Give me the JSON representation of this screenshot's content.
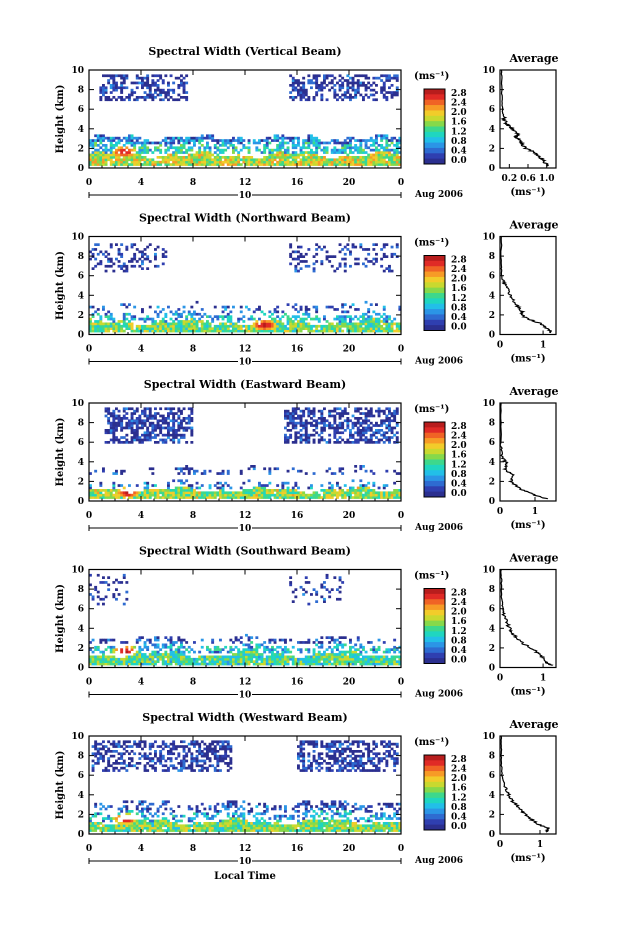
{
  "figure": {
    "xlabel": "Local Time",
    "ylabel": "Height (km)",
    "date_label": "10",
    "month_label": "Aug 2006",
    "unit_label": "(ms⁻¹)",
    "average_title": "Average",
    "colorbar_ticks": [
      "2.8",
      "2.4",
      "2.0",
      "1.6",
      "1.2",
      "0.8",
      "0.4",
      "0.0"
    ],
    "colormap": [
      "#2b2f8f",
      "#2f3fb0",
      "#2e6bd1",
      "#2b95e6",
      "#22bfe8",
      "#1fd6c0",
      "#3dd88c",
      "#86d94a",
      "#c9d92f",
      "#f2cc2a",
      "#f79b26",
      "#f06325",
      "#e02a26",
      "#b81d1d"
    ],
    "x_ticks": [
      "0",
      "4",
      "8",
      "12",
      "16",
      "20",
      "0"
    ],
    "y_ticks": [
      "0",
      "2",
      "4",
      "6",
      "8",
      "10"
    ]
  },
  "chart_data": [
    {
      "type": "heatmap",
      "title": "Spectral Width (Vertical Beam)",
      "xlim": [
        0,
        24
      ],
      "ylim": [
        0,
        10
      ],
      "layers": [
        {
          "y": [
            0.3,
            1.4
          ],
          "level": 0.6,
          "density": 0.95
        },
        {
          "y": [
            1.4,
            2.6
          ],
          "level": 0.35,
          "density": 0.55
        },
        {
          "y": [
            2.6,
            3.2
          ],
          "level": 0.2,
          "density": 0.75
        },
        {
          "y": [
            7.0,
            9.8
          ],
          "level": 0.05,
          "density": 0.5,
          "x_ranges": [
            [
              0.8,
              7.5
            ],
            [
              15.5,
              23.8
            ]
          ]
        }
      ],
      "hotspot": {
        "x": 2.7,
        "y": 1.7
      },
      "average": {
        "xlim": [
          0,
          1.2
        ],
        "x_ticks": [
          "0.2",
          "0.6",
          "1.0"
        ],
        "x_tick_values": [
          0.2,
          0.6,
          1.0
        ],
        "profile": [
          [
            1.05,
            0.2
          ],
          [
            0.95,
            0.6
          ],
          [
            0.88,
            1.0
          ],
          [
            0.75,
            1.6
          ],
          [
            0.55,
            2.0
          ],
          [
            0.45,
            2.6
          ],
          [
            0.35,
            3.2
          ],
          [
            0.38,
            3.6
          ],
          [
            0.2,
            4.2
          ],
          [
            0.12,
            4.6
          ],
          [
            0.08,
            5.2
          ],
          [
            0.05,
            6.0
          ],
          [
            0.04,
            8.0
          ],
          [
            0.03,
            10.0
          ]
        ]
      }
    },
    {
      "type": "heatmap",
      "title": "Spectral Width (Northward Beam)",
      "xlim": [
        0,
        24
      ],
      "ylim": [
        0,
        10
      ],
      "layers": [
        {
          "y": [
            0.3,
            1.3
          ],
          "level": 0.5,
          "density": 0.95
        },
        {
          "y": [
            1.3,
            2.2
          ],
          "level": 0.3,
          "density": 0.45
        },
        {
          "y": [
            2.2,
            3.2
          ],
          "level": 0.15,
          "density": 0.2
        },
        {
          "y": [
            6.5,
            9.6
          ],
          "level": 0.05,
          "density": 0.25,
          "x_ranges": [
            [
              0,
              6
            ],
            [
              15.5,
              23.8
            ]
          ]
        }
      ],
      "hotspot": {
        "x": 13.5,
        "y": 1.0
      },
      "average": {
        "xlim": [
          0,
          1.3
        ],
        "x_ticks": [
          "0",
          "1"
        ],
        "x_tick_values": [
          0,
          1
        ],
        "profile": [
          [
            1.2,
            0.2
          ],
          [
            1.1,
            0.6
          ],
          [
            0.9,
            1.2
          ],
          [
            0.55,
            1.8
          ],
          [
            0.5,
            2.4
          ],
          [
            0.35,
            3.2
          ],
          [
            0.25,
            4.0
          ],
          [
            0.15,
            4.8
          ],
          [
            0.05,
            5.6
          ],
          [
            0.03,
            7.0
          ],
          [
            0.03,
            10.0
          ]
        ]
      }
    },
    {
      "type": "heatmap",
      "title": "Spectral Width (Eastward Beam)",
      "xlim": [
        0,
        24
      ],
      "ylim": [
        0,
        10
      ],
      "layers": [
        {
          "y": [
            0.3,
            1.2
          ],
          "level": 0.55,
          "density": 0.95
        },
        {
          "y": [
            1.2,
            2.0
          ],
          "level": 0.2,
          "density": 0.3
        },
        {
          "y": [
            2.8,
            3.4
          ],
          "level": 0.08,
          "density": 0.25
        },
        {
          "y": [
            6.0,
            9.7
          ],
          "level": 0.05,
          "density": 0.55,
          "x_ranges": [
            [
              1.2,
              8
            ],
            [
              15,
              23.8
            ]
          ]
        }
      ],
      "hotspot": {
        "x": 3.0,
        "y": 0.9
      },
      "average": {
        "xlim": [
          0,
          1.6
        ],
        "x_ticks": [
          "0",
          "1"
        ],
        "x_tick_values": [
          0,
          1
        ],
        "profile": [
          [
            1.35,
            0.2
          ],
          [
            1.0,
            0.6
          ],
          [
            0.6,
            1.2
          ],
          [
            0.3,
            2.0
          ],
          [
            0.4,
            2.6
          ],
          [
            0.15,
            3.2
          ],
          [
            0.2,
            3.8
          ],
          [
            0.05,
            4.5
          ],
          [
            0.03,
            6.0
          ],
          [
            0.03,
            10.0
          ]
        ]
      }
    },
    {
      "type": "heatmap",
      "title": "Spectral Width (Southward Beam)",
      "xlim": [
        0,
        24
      ],
      "ylim": [
        0,
        10
      ],
      "layers": [
        {
          "y": [
            0.3,
            1.4
          ],
          "level": 0.45,
          "density": 0.95
        },
        {
          "y": [
            1.4,
            2.4
          ],
          "level": 0.3,
          "density": 0.55
        },
        {
          "y": [
            2.4,
            3.1
          ],
          "level": 0.12,
          "density": 0.35
        },
        {
          "y": [
            6.5,
            9.8
          ],
          "level": 0.05,
          "density": 0.15,
          "x_ranges": [
            [
              0,
              3
            ],
            [
              15.5,
              19.5
            ]
          ]
        }
      ],
      "hotspot": {
        "x": 2.8,
        "y": 1.7
      },
      "average": {
        "xlim": [
          0,
          1.3
        ],
        "x_ticks": [
          "0",
          "1"
        ],
        "x_tick_values": [
          0,
          1
        ],
        "profile": [
          [
            1.2,
            0.2
          ],
          [
            1.05,
            0.6
          ],
          [
            0.95,
            1.2
          ],
          [
            0.8,
            1.8
          ],
          [
            0.55,
            2.4
          ],
          [
            0.35,
            3.2
          ],
          [
            0.25,
            3.8
          ],
          [
            0.15,
            4.6
          ],
          [
            0.08,
            5.6
          ],
          [
            0.05,
            6.5
          ],
          [
            0.03,
            8.0
          ],
          [
            0.03,
            10.0
          ]
        ]
      }
    },
    {
      "type": "heatmap",
      "title": "Spectral Width (Westward Beam)",
      "xlim": [
        0,
        24
      ],
      "ylim": [
        0,
        10
      ],
      "layers": [
        {
          "y": [
            0.3,
            1.3
          ],
          "level": 0.5,
          "density": 0.95
        },
        {
          "y": [
            1.3,
            2.3
          ],
          "level": 0.28,
          "density": 0.4
        },
        {
          "y": [
            2.3,
            3.3
          ],
          "level": 0.12,
          "density": 0.35
        },
        {
          "y": [
            6.5,
            9.8
          ],
          "level": 0.05,
          "density": 0.5,
          "x_ranges": [
            [
              0.2,
              11
            ],
            [
              16,
              23.8
            ]
          ]
        }
      ],
      "hotspot": {
        "x": 2.8,
        "y": 1.6
      },
      "average": {
        "xlim": [
          0,
          1.4
        ],
        "x_ticks": [
          "0",
          "1"
        ],
        "x_tick_values": [
          0,
          1
        ],
        "profile": [
          [
            1.15,
            0.2
          ],
          [
            1.2,
            0.6
          ],
          [
            0.95,
            1.0
          ],
          [
            0.75,
            1.6
          ],
          [
            0.6,
            2.2
          ],
          [
            0.45,
            2.8
          ],
          [
            0.3,
            3.4
          ],
          [
            0.2,
            4.2
          ],
          [
            0.12,
            5.0
          ],
          [
            0.05,
            6.0
          ],
          [
            0.03,
            8.0
          ],
          [
            0.03,
            10.0
          ]
        ]
      }
    }
  ]
}
